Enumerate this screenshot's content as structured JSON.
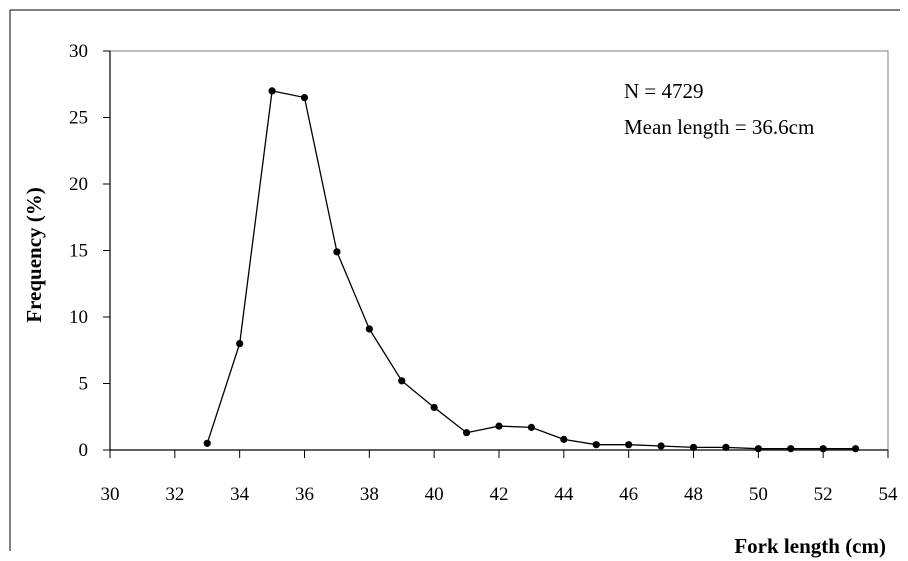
{
  "chart_data": {
    "type": "line",
    "title": "",
    "xlabel": "Fork length (cm)",
    "ylabel": "Frequency (%)",
    "xlim": [
      30,
      54
    ],
    "ylim": [
      0,
      30
    ],
    "x_ticks": [
      30,
      32,
      34,
      36,
      38,
      40,
      42,
      44,
      46,
      48,
      50,
      52,
      54
    ],
    "y_ticks": [
      0,
      5,
      10,
      15,
      20,
      25,
      30
    ],
    "grid": false,
    "legend": "none",
    "series": [
      {
        "x": [
          33,
          34,
          35,
          36,
          37,
          38,
          39,
          40,
          41,
          42,
          43,
          44,
          45,
          46,
          47,
          48,
          49,
          50,
          51,
          52,
          53
        ],
        "y": [
          0.5,
          8.0,
          27.0,
          26.5,
          14.9,
          9.1,
          5.2,
          3.2,
          1.3,
          1.8,
          1.7,
          0.8,
          0.4,
          0.4,
          0.3,
          0.2,
          0.2,
          0.1,
          0.1,
          0.1,
          0.1
        ]
      }
    ],
    "annotations": [
      "N = 4729",
      "Mean length = 36.6cm"
    ],
    "colors": {
      "line": "#000000",
      "marker": "#000000",
      "frame": "#808080"
    }
  }
}
